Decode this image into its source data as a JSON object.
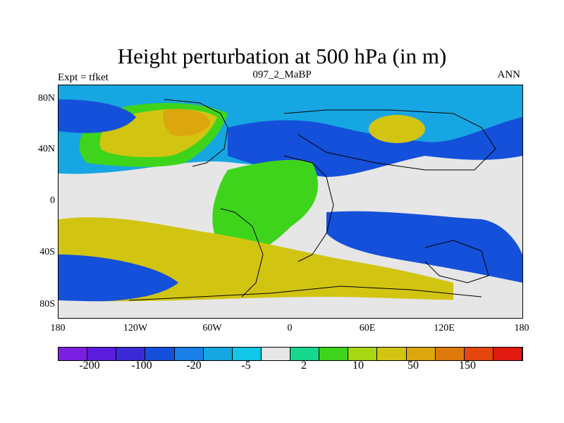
{
  "title": "Height perturbation at 500 hPa (in m)",
  "left_label": "Expt = tfket",
  "center_label": "097_2_MaBP",
  "right_label": "ANN",
  "lat_ticks": [
    "80N",
    "40N",
    "0",
    "40S",
    "80S"
  ],
  "lon_ticks": [
    "180",
    "120W",
    "60W",
    "0",
    "60E",
    "120E",
    "180"
  ],
  "colorbar": {
    "colors": [
      "#7b1fe0",
      "#5a1ddb",
      "#3a2ad6",
      "#1450d9",
      "#1a7fe6",
      "#16a6e2",
      "#12c6e6",
      "#e6e6e6",
      "#18d68c",
      "#3fd41c",
      "#a7d613",
      "#d2c512",
      "#dca60e",
      "#de7a0b",
      "#e5460e",
      "#e01a10"
    ],
    "labels": [
      "-200",
      "-100",
      "-20",
      "-5",
      "2",
      "10",
      "50",
      "150"
    ]
  },
  "map": {
    "colors": {
      "deep_blue": "#1450d9",
      "mid_blue": "#1a7fe6",
      "cyan": "#12c6e6",
      "light_cyan": "#16a6e2",
      "gray": "#e6e6e6",
      "teal_green": "#18d68c",
      "green": "#3fd41c",
      "yellow_green": "#a7d613",
      "yellow": "#d2c512",
      "orange": "#dca60e"
    }
  }
}
